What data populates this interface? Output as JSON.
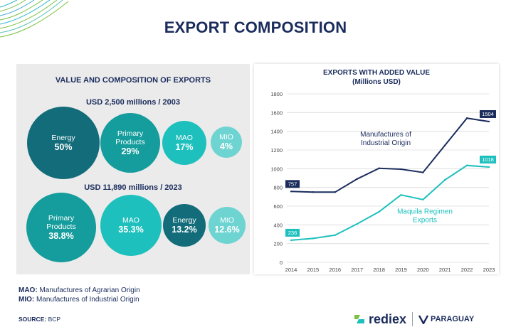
{
  "page": {
    "title": "EXPORT COMPOSITION"
  },
  "left_panel": {
    "title": "VALUE AND COMPOSITION OF EXPORTS",
    "group_2003": {
      "label": "USD 2,500 millions / 2003",
      "bubbles": [
        {
          "name": "Energy",
          "percent": "50%",
          "color": "#126c79"
        },
        {
          "name": "Primary Products",
          "percent": "29%",
          "color": "#159c9c"
        },
        {
          "name": "MAO",
          "percent": "17%",
          "color": "#1ec0bd"
        },
        {
          "name": "MIO",
          "percent": "4%",
          "color": "#6ed4d1"
        }
      ]
    },
    "group_2023": {
      "label": "USD 11,890 millions / 2023",
      "bubbles": [
        {
          "name": "Primary Products",
          "percent": "38.8%",
          "color": "#159c9c"
        },
        {
          "name": "MAO",
          "percent": "35.3%",
          "color": "#1ec0bd"
        },
        {
          "name": "Energy",
          "percent": "13.2%",
          "color": "#126c79"
        },
        {
          "name": "MIO",
          "percent": "12.6%",
          "color": "#6ed4d1"
        }
      ]
    }
  },
  "notes": {
    "mao_abbr": "MAO:",
    "mao_text": "Manufactures of Agrarian Origin",
    "mio_abbr": "MIO:",
    "mio_text": "Manufactures of Industrial Origin",
    "source_label": "SOURCE:",
    "source_text": "BCP"
  },
  "brand": {
    "rediex": "rediex",
    "paraguay": "PARAGUAY"
  },
  "chart_data": {
    "type": "line",
    "title": "EXPORTS WITH ADDED VALUE",
    "subtitle": "(Millions USD)",
    "x": [
      2014,
      2015,
      2016,
      2017,
      2018,
      2019,
      2020,
      2021,
      2022,
      2023
    ],
    "ylim": [
      0,
      1800
    ],
    "yticks": [
      0,
      200,
      400,
      600,
      800,
      1000,
      1200,
      1400,
      1600,
      1800
    ],
    "series": [
      {
        "name": "Manufactures of Industrial Origin",
        "label_lines": [
          "Manufactures of",
          "Industrial Origin"
        ],
        "color": "#1a2c5c",
        "values": [
          757,
          750,
          750,
          890,
          1005,
          995,
          960,
          1250,
          1540,
          1504
        ],
        "start_label": "757",
        "end_label": "1504"
      },
      {
        "name": "Maquila Regimen Exports",
        "label_lines": [
          "Maquila Regimen",
          "Exports"
        ],
        "color": "#1ec0bd",
        "values": [
          236,
          255,
          290,
          410,
          540,
          720,
          670,
          880,
          1035,
          1018
        ],
        "start_label": "236",
        "end_label": "1018"
      }
    ]
  }
}
